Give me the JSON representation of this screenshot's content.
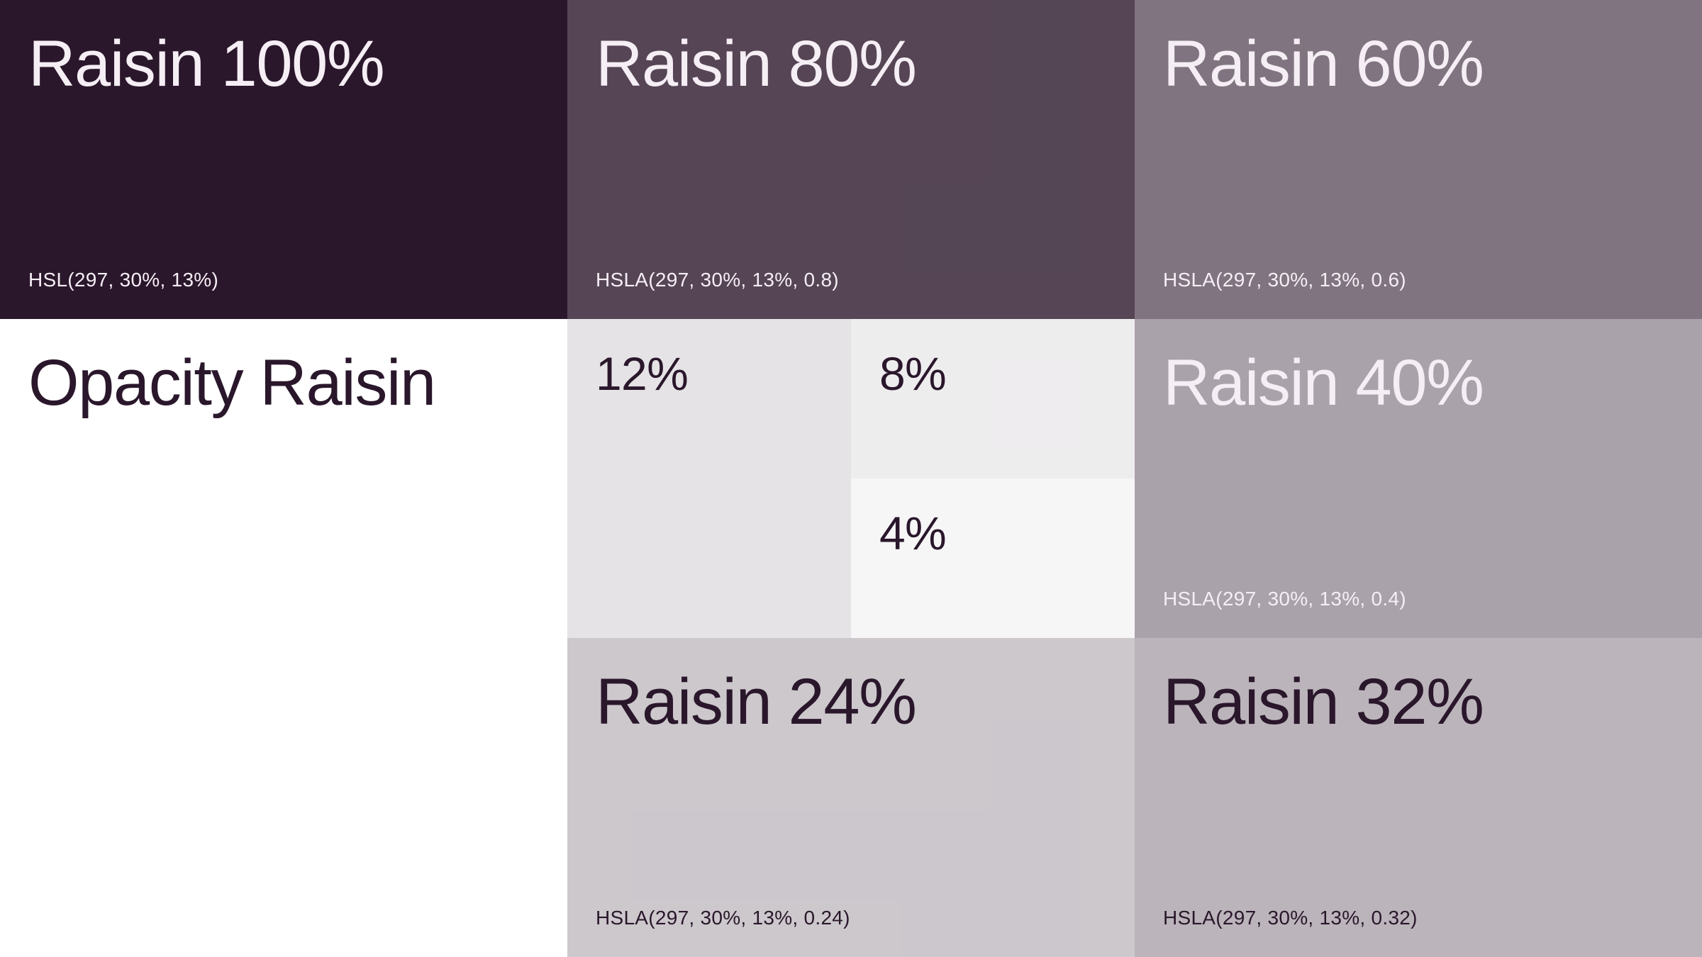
{
  "page": {
    "background": "#FFFFFF"
  },
  "colors": {
    "raisin_base_hex": "#2A172B",
    "raisin_base_hsl": "hsl(297, 30%, 13%)",
    "light_text": "#F6EEF5",
    "dark_text": "#2A172B"
  },
  "section": {
    "title": "Opacity Raisin",
    "bg": "#FFFFFF",
    "fg": "#2A172B"
  },
  "swatches": {
    "raisin_100": {
      "title": "Raisin 100%",
      "caption": "HSL(297, 30%, 13%)",
      "bg": "hsl(297, 30%, 13%)",
      "fg": "#F6EEF5"
    },
    "raisin_80": {
      "title": "Raisin 80%",
      "caption": "HSLA(297, 30%, 13%, 0.8)",
      "bg": "hsla(297, 30%, 13%, 0.8)",
      "fg": "#F6EEF5"
    },
    "raisin_60": {
      "title": "Raisin 60%",
      "caption": "HSLA(297, 30%, 13%, 0.6)",
      "bg": "hsla(297, 30%, 13%, 0.6)",
      "fg": "#F6EEF5"
    },
    "raisin_40": {
      "title": "Raisin 40%",
      "caption": "HSLA(297, 30%, 13%, 0.4)",
      "bg": "hsla(297, 30%, 13%, 0.4)",
      "fg": "#F6EEF5"
    },
    "raisin_32": {
      "title": "Raisin 32%",
      "caption": "HSLA(297, 30%, 13%, 0.32)",
      "bg": "hsla(297, 30%, 13%, 0.32)",
      "fg": "#2A172B"
    },
    "raisin_24": {
      "title": "Raisin 24%",
      "caption": "HSLA(297, 30%, 13%, 0.24)",
      "bg": "hsla(297, 30%, 13%, 0.24)",
      "fg": "#2A172B"
    },
    "raisin_12": {
      "label": "12%",
      "bg": "hsla(297, 30%, 13%, 0.12)",
      "fg": "#2A172B"
    },
    "raisin_8": {
      "label": "8%",
      "bg": "hsla(297, 30%, 13%, 0.08)",
      "fg": "#2A172B"
    },
    "raisin_4": {
      "label": "4%",
      "bg": "hsla(297, 30%, 13%, 0.04)",
      "fg": "#2A172B"
    }
  }
}
